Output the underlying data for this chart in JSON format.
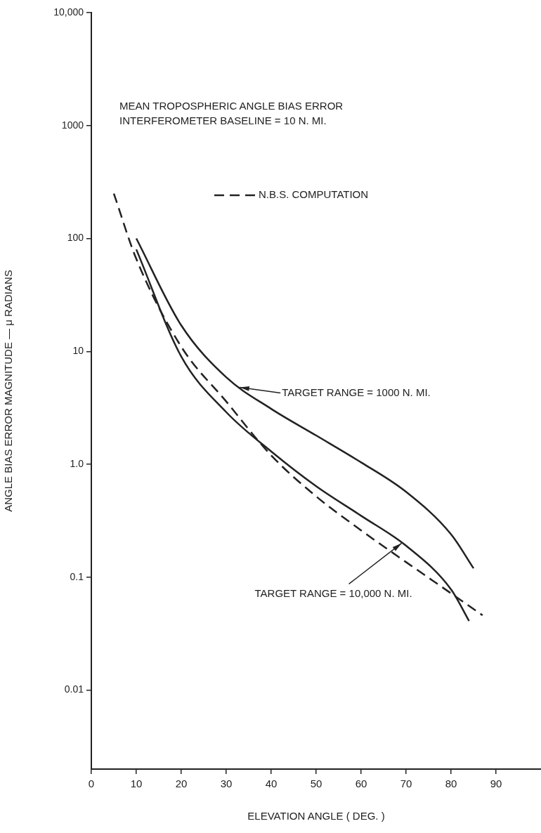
{
  "chart_data": {
    "type": "line",
    "title": "MEAN TROPOSPHERIC ANGLE BIAS ERROR",
    "subtitle": "INTERFEROMETER BASELINE = 10 N. MI.",
    "xlabel": "ELEVATION ANGLE ( DEG. )",
    "ylabel": "ANGLE BIAS ERROR MAGNITUDE — μ RADIANS",
    "log": "y",
    "grid": false,
    "legend": "top",
    "marker": "none",
    "xlim": [
      0,
      100
    ],
    "xticks": [
      0,
      10,
      20,
      30,
      40,
      50,
      60,
      70,
      80,
      90
    ],
    "ylim": [
      0.002,
      10000
    ],
    "yticks": [
      {
        "value": 0.01,
        "label": "0.01"
      },
      0.1,
      {
        "value": 1,
        "label": "1.0"
      },
      10,
      100,
      1000,
      {
        "value": 10000,
        "label": "10,000"
      }
    ],
    "series": [
      {
        "color": "#222222",
        "line_style": "solid",
        "x": [
          10,
          20,
          30,
          40,
          50,
          60,
          70,
          80,
          85
        ],
        "values": [
          100,
          17,
          5.9,
          3.1,
          1.8,
          1.04,
          0.57,
          0.24,
          0.12
        ]
      },
      {
        "color": "#222222",
        "line_style": "solid",
        "x": [
          10,
          20,
          30,
          40,
          50,
          60,
          70,
          80,
          84
        ],
        "values": [
          80,
          9,
          2.9,
          1.3,
          0.64,
          0.35,
          0.19,
          0.078,
          0.041
        ]
      },
      {
        "name": "N.B.S. COMPUTATION",
        "color": "#222222",
        "line_style": "dashed",
        "x": [
          5,
          10,
          20,
          30,
          40,
          50,
          60,
          70,
          80,
          87
        ],
        "values": [
          250,
          66,
          11,
          3.6,
          1.2,
          0.52,
          0.26,
          0.136,
          0.072,
          0.046
        ]
      }
    ],
    "annotations": [
      {
        "text": "TARGET RANGE = 1000 N. MI.",
        "x": 33,
        "y": 4.8
      },
      {
        "text": "TARGET RANGE = 10,000 N. MI.",
        "x": 69,
        "y": 0.2
      }
    ]
  }
}
